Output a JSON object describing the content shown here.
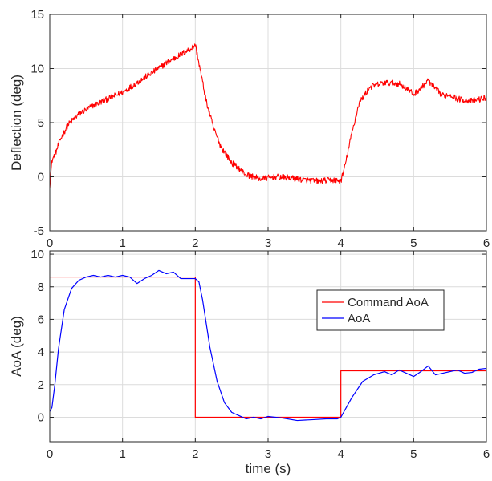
{
  "chart_data": [
    {
      "type": "line",
      "xlabel": "",
      "ylabel": "Deflection (deg)",
      "xlim": [
        0,
        6
      ],
      "ylim": [
        -5,
        15
      ],
      "xticks": [
        "0",
        "1",
        "2",
        "3",
        "4",
        "5",
        "6"
      ],
      "yticks": [
        "-5",
        "0",
        "5",
        "10",
        "15"
      ],
      "grid": true,
      "noisy": true,
      "series": [
        {
          "name": "",
          "color": "#ff0000",
          "x": [
            0,
            0.03,
            0.08,
            0.15,
            0.25,
            0.4,
            0.6,
            0.8,
            1.0,
            1.2,
            1.4,
            1.6,
            1.8,
            1.95,
            2.0,
            2.05,
            2.15,
            2.25,
            2.35,
            2.5,
            2.7,
            2.9,
            3.1,
            3.3,
            3.5,
            3.7,
            3.9,
            4.0,
            4.05,
            4.15,
            4.25,
            4.4,
            4.6,
            4.8,
            4.9,
            5.0,
            5.1,
            5.2,
            5.3,
            5.4,
            5.5,
            5.6,
            5.8,
            6.0
          ],
          "y": [
            -0.8,
            1.5,
            2.2,
            3.5,
            4.8,
            5.8,
            6.6,
            7.2,
            7.8,
            8.7,
            9.6,
            10.5,
            11.3,
            11.9,
            12.2,
            10.5,
            7.0,
            4.5,
            2.8,
            1.3,
            0.2,
            -0.2,
            0.0,
            -0.1,
            -0.3,
            -0.4,
            -0.3,
            -0.4,
            0.8,
            4.0,
            6.8,
            8.3,
            8.7,
            8.6,
            8.2,
            7.6,
            8.2,
            8.9,
            8.1,
            7.5,
            7.6,
            7.2,
            7.0,
            7.3
          ]
        }
      ]
    },
    {
      "type": "line",
      "xlabel": "time (s)",
      "ylabel": "AoA (deg)",
      "xlim": [
        0,
        6
      ],
      "ylim": [
        -1.5,
        10.2
      ],
      "xticks": [
        "0",
        "1",
        "2",
        "3",
        "4",
        "5",
        "6"
      ],
      "yticks": [
        "0",
        "2",
        "4",
        "6",
        "8",
        "10"
      ],
      "grid": true,
      "legend": "right",
      "series": [
        {
          "name": "Command AoA",
          "color": "#ff0000",
          "x": [
            0,
            2.0,
            2.0,
            4.0,
            4.0,
            6.0
          ],
          "y": [
            8.6,
            8.6,
            0.0,
            0.0,
            2.85,
            2.85
          ]
        },
        {
          "name": "AoA",
          "color": "#0000ff",
          "x": [
            0,
            0.03,
            0.07,
            0.12,
            0.2,
            0.3,
            0.4,
            0.5,
            0.6,
            0.7,
            0.8,
            0.9,
            1.0,
            1.1,
            1.2,
            1.3,
            1.4,
            1.5,
            1.6,
            1.7,
            1.8,
            1.9,
            2.0,
            2.05,
            2.1,
            2.2,
            2.3,
            2.4,
            2.5,
            2.6,
            2.7,
            2.8,
            2.9,
            3.0,
            3.1,
            3.2,
            3.4,
            3.6,
            3.8,
            3.95,
            4.0,
            4.05,
            4.15,
            4.3,
            4.45,
            4.6,
            4.7,
            4.8,
            4.9,
            5.0,
            5.1,
            5.2,
            5.3,
            5.4,
            5.5,
            5.6,
            5.7,
            5.8,
            5.9,
            6.0
          ],
          "y": [
            0.35,
            0.6,
            2.0,
            4.2,
            6.6,
            7.9,
            8.4,
            8.6,
            8.7,
            8.6,
            8.7,
            8.6,
            8.7,
            8.6,
            8.2,
            8.5,
            8.7,
            9.0,
            8.8,
            8.9,
            8.5,
            8.5,
            8.5,
            8.3,
            7.2,
            4.3,
            2.2,
            0.9,
            0.3,
            0.1,
            -0.1,
            0.0,
            -0.1,
            0.05,
            0.0,
            -0.05,
            -0.2,
            -0.15,
            -0.1,
            -0.1,
            0.0,
            0.4,
            1.2,
            2.2,
            2.6,
            2.8,
            2.6,
            2.9,
            2.7,
            2.5,
            2.8,
            3.15,
            2.6,
            2.7,
            2.8,
            2.9,
            2.7,
            2.75,
            2.95,
            3.0
          ]
        }
      ]
    }
  ]
}
